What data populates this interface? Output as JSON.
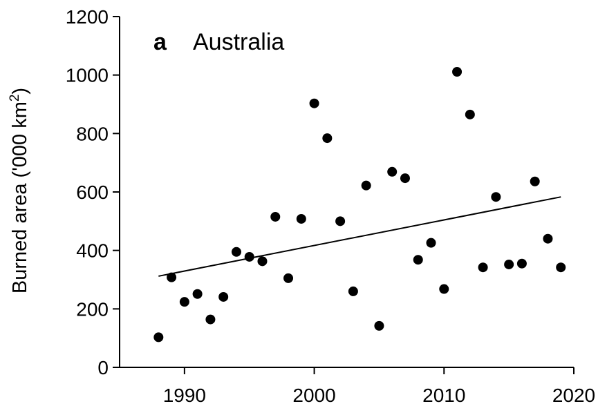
{
  "chart_data": {
    "type": "scatter",
    "panel_letter": "a",
    "title": "Australia",
    "xlabel": "",
    "ylabel": "Burned area ('000 km",
    "ylabel_superscript": "2",
    "ylabel_close": ")",
    "xlim": [
      1985,
      2020
    ],
    "ylim": [
      0,
      1200
    ],
    "xticks": [
      1990,
      2000,
      2010,
      2020
    ],
    "yticks": [
      0,
      200,
      400,
      600,
      800,
      1000,
      1200
    ],
    "grid": false,
    "legend": "none",
    "series": [
      {
        "x": [
          1988,
          1989,
          1990,
          1991,
          1992,
          1993,
          1994,
          1995,
          1996,
          1997,
          1998,
          1999,
          2000,
          2001,
          2002,
          2003,
          2004,
          2005,
          2006,
          2007,
          2008,
          2009,
          2010,
          2011,
          2012,
          2013,
          2014,
          2015,
          2016,
          2017,
          2018,
          2019
        ],
        "y": [
          103,
          308,
          224,
          251,
          164,
          241,
          395,
          378,
          363,
          515,
          305,
          508,
          903,
          784,
          500,
          260,
          622,
          142,
          669,
          647,
          368,
          426,
          268,
          1011,
          865,
          342,
          583,
          352,
          355,
          636,
          440,
          342
        ]
      }
    ],
    "trend_line": {
      "x": [
        1988,
        2019
      ],
      "y": [
        312,
        583
      ]
    }
  }
}
